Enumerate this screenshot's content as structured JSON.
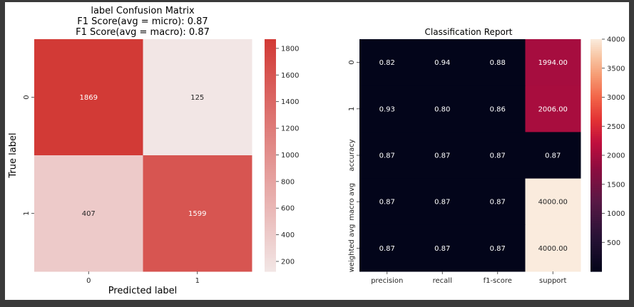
{
  "chart_data": [
    {
      "type": "heatmap",
      "title_lines": [
        "label Confusion Matrix",
        "F1 Score(avg = micro): 0.87",
        "F1 Score(avg = macro): 0.87"
      ],
      "xlabel": "Predicted label",
      "ylabel": "True label",
      "x_categories": [
        "0",
        "1"
      ],
      "y_categories": [
        "0",
        "1"
      ],
      "values": [
        [
          1869,
          125
        ],
        [
          407,
          1599
        ]
      ],
      "value_format": "integer",
      "colorbar_ticks": [
        200,
        400,
        600,
        800,
        1000,
        1200,
        1400,
        1600,
        1800
      ],
      "colorbar_range": [
        125,
        1869
      ],
      "colormap": {
        "low": "#f2e6e5",
        "high": "#d23a36"
      },
      "grid": false
    },
    {
      "type": "heatmap",
      "title": "Classification Report",
      "xlabel": "",
      "ylabel": "",
      "x_categories": [
        "precision",
        "recall",
        "f1-score",
        "support"
      ],
      "y_categories": [
        "0",
        "1",
        "accuracy",
        "macro avg",
        "weighted avg"
      ],
      "values": [
        [
          0.82,
          0.94,
          0.88,
          1994.0
        ],
        [
          0.93,
          0.8,
          0.86,
          2006.0
        ],
        [
          0.87,
          0.87,
          0.87,
          0.87
        ],
        [
          0.87,
          0.87,
          0.87,
          4000.0
        ],
        [
          0.87,
          0.87,
          0.87,
          4000.0
        ]
      ],
      "value_format": "two_decimals",
      "colorbar_ticks": [
        500,
        1000,
        1500,
        2000,
        2500,
        3000,
        3500,
        4000
      ],
      "colorbar_range": [
        0,
        4000
      ],
      "colormap": "rocket",
      "grid": false
    }
  ]
}
